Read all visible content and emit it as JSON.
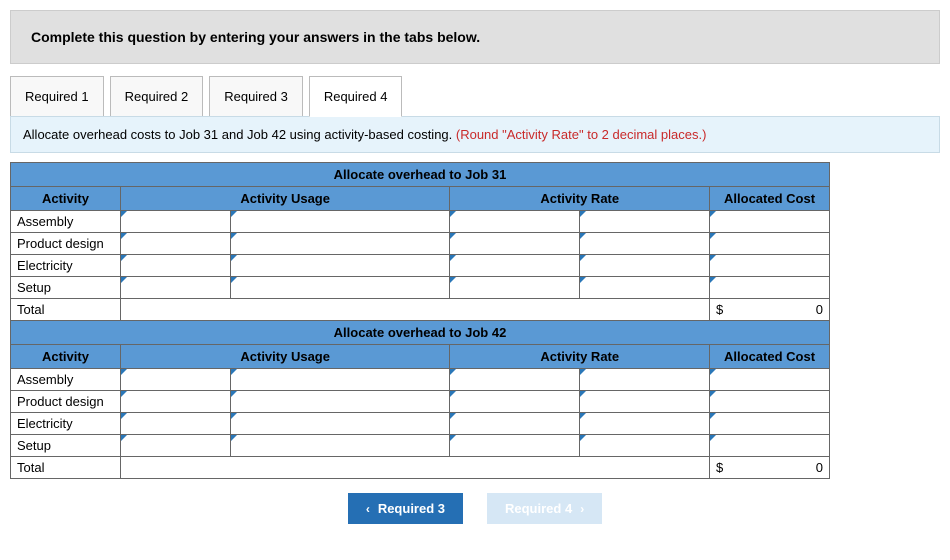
{
  "instruction": "Complete this question by entering your answers in the tabs below.",
  "tabs": {
    "items": [
      "Required 1",
      "Required 2",
      "Required 3",
      "Required 4"
    ],
    "active_index": 3
  },
  "prompt": {
    "text": "Allocate overhead costs to Job 31 and Job 42 using activity-based costing. ",
    "hint": "(Round \"Activity Rate\" to 2 decimal places.)"
  },
  "colors": {
    "header_bg": "#5a99d4",
    "input_marker": "#2a77b8",
    "instruction_bg": "#e0e0e0",
    "prompt_bg": "#e6f3fb",
    "hint_color": "#c92a2a",
    "nav_prev_bg": "#256fb4",
    "nav_next_bg": "#d6e7f5"
  },
  "column_headers": {
    "activity": "Activity",
    "usage": "Activity Usage",
    "rate": "Activity Rate",
    "cost": "Allocated Cost"
  },
  "sections": [
    {
      "title": "Allocate overhead to Job 31",
      "rows": [
        "Assembly",
        "Product design",
        "Electricity",
        "Setup"
      ],
      "total_label": "Total",
      "total_currency": "$",
      "total_value": "0"
    },
    {
      "title": "Allocate overhead to Job 42",
      "rows": [
        "Assembly",
        "Product design",
        "Electricity",
        "Setup"
      ],
      "total_label": "Total",
      "total_currency": "$",
      "total_value": "0"
    }
  ],
  "nav": {
    "prev": "Required 3",
    "next": "Required 4"
  }
}
